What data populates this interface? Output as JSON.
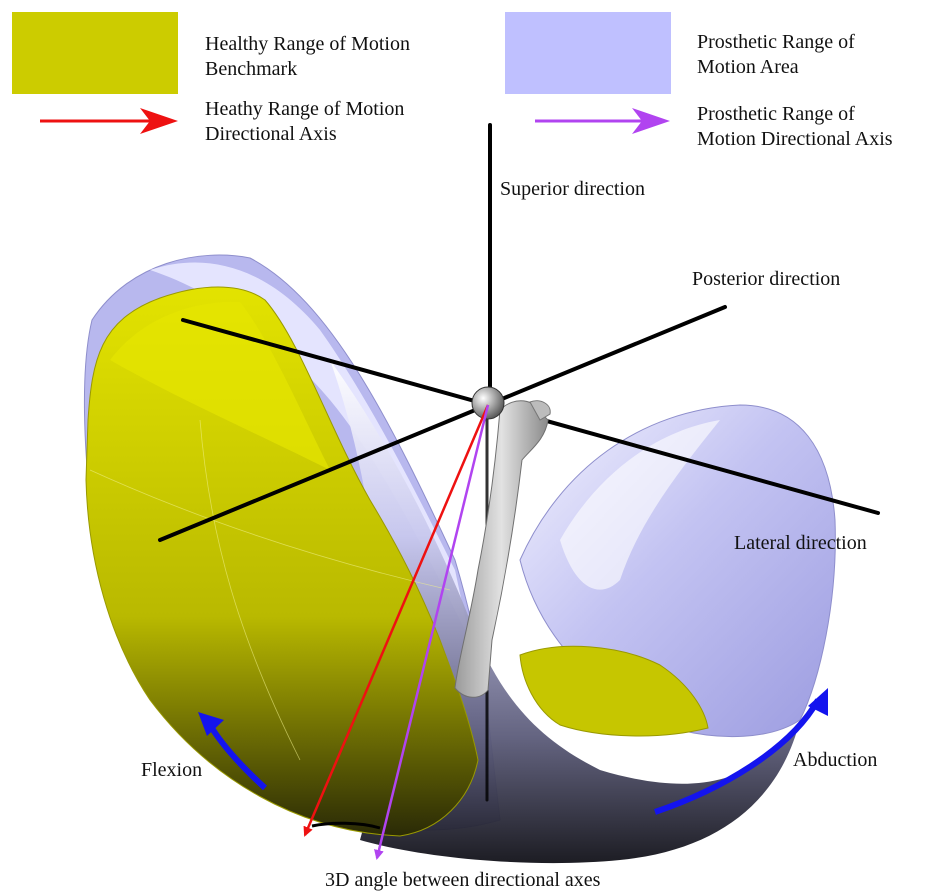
{
  "legend": {
    "healthy_area": {
      "line1": "Healthy Range of Motion",
      "line2": "Benchmark",
      "color": "#cccc00"
    },
    "prosthetic_area": {
      "line1": "Prosthetic Range of",
      "line2": "Motion Area",
      "color": "#bfc0ff"
    },
    "healthy_axis": {
      "line1": "Heathy Range of Motion",
      "line2": "Directional Axis",
      "color": "#ee1111"
    },
    "prosthetic_axis": {
      "line1": "Prosthetic Range of",
      "line2": "Motion Directional Axis",
      "color": "#b144f0"
    }
  },
  "axes": {
    "superior": "Superior direction",
    "posterior": "Posterior direction",
    "lateral": "Lateral direction"
  },
  "motions": {
    "flexion": "Flexion",
    "abduction": "Abduction",
    "arrow_color": "#1414ee"
  },
  "caption": "3D angle between directional axes"
}
